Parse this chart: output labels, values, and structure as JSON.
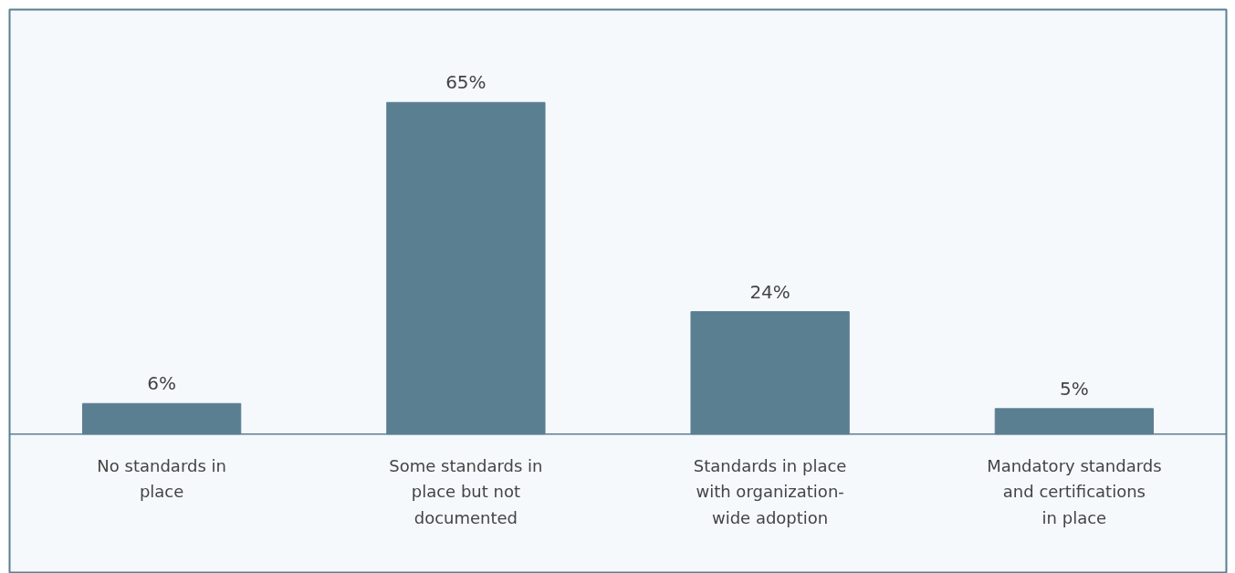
{
  "chart_data": {
    "type": "bar",
    "categories": [
      "No standards in place",
      "Some standards in place but not documented",
      "Standards in place with organization-wide adoption",
      "Mandatory standards and certifications in place"
    ],
    "values": [
      6,
      65,
      24,
      5
    ],
    "value_labels": [
      "6%",
      "65%",
      "24%",
      "5%"
    ],
    "color": "#5a7f91"
  }
}
